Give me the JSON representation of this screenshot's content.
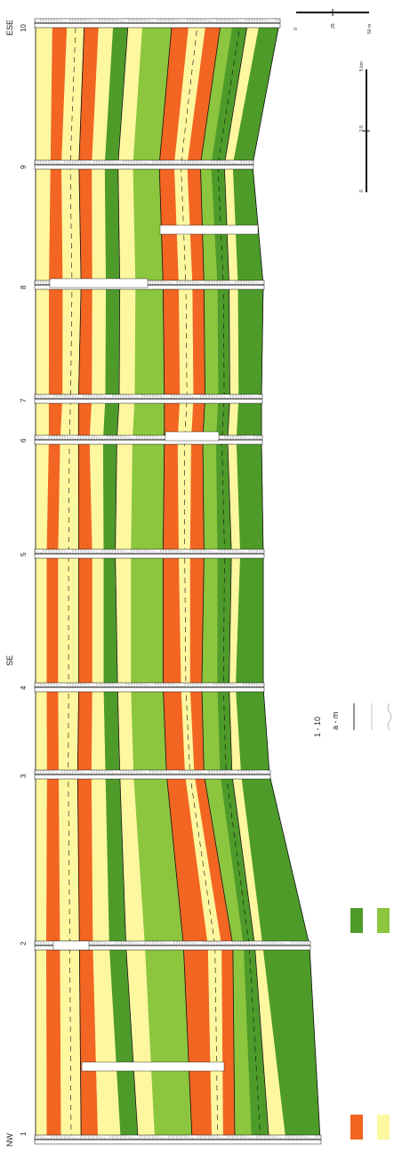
{
  "section": {
    "direction_labels": [
      "NW",
      "SE",
      "ESE"
    ],
    "well_labels": [
      "1",
      "2",
      "3",
      "4",
      "5",
      "6",
      "7",
      "8",
      "9",
      "10"
    ]
  },
  "legend": {
    "labels": [
      "1 - 10",
      "a - m"
    ]
  },
  "scale_bars": {
    "horizontal_ticks": [
      "0",
      "25",
      "50 m"
    ],
    "vertical_ticks": [
      "0",
      "2.5",
      "5 km"
    ]
  },
  "colors": {
    "orange": "#f26522",
    "pale_yellow": "#fdf7a0",
    "dark_green": "#4e9b2a",
    "light_green": "#8cc63f",
    "ink": "#111111"
  }
}
